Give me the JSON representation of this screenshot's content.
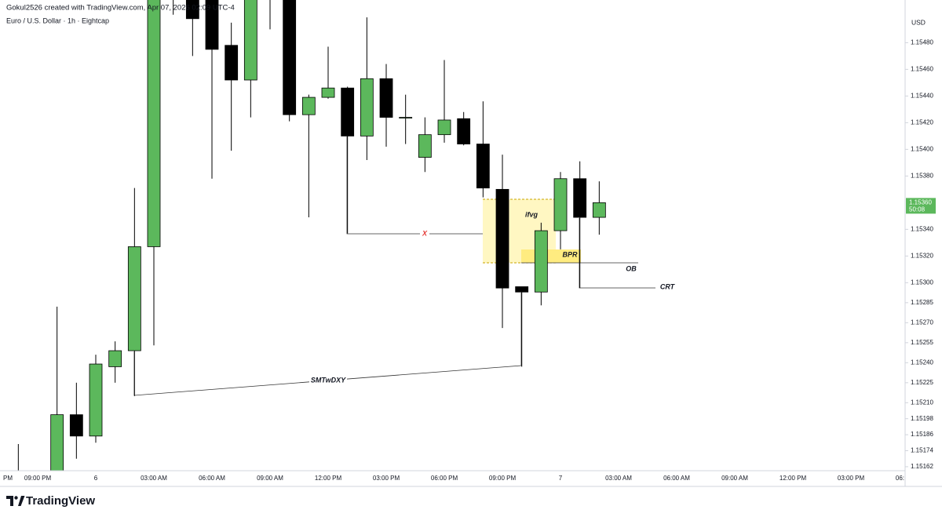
{
  "header": {
    "credit": "Gokul2526 created with TradingView.com, Apr 07, 2026 02:09 UTC-4"
  },
  "footer": {
    "logo": "TradingView"
  },
  "chart_data": {
    "type": "candlestick",
    "title": "Euro / U.S. Dollar · 1h · Eightcap",
    "y_axis_label": "USD",
    "up_color": "#5cb85c",
    "down_color": "#000000",
    "grid": false,
    "categories": [
      "PM",
      null,
      "09:00 PM",
      null,
      null,
      "6",
      null,
      null,
      "03:00 AM",
      null,
      null,
      "06:00 AM",
      null,
      null,
      "09:00 AM",
      null,
      null,
      "12:00 PM",
      null,
      null,
      "03:00 PM",
      null,
      null,
      "06:00 PM",
      null,
      null,
      "09:00 PM",
      null,
      null,
      "7",
      null,
      null,
      "03:00 AM",
      null,
      null,
      "06:00 AM",
      null,
      null,
      "09:00 AM",
      null,
      null,
      "12:00 PM",
      null,
      null,
      "03:00 PM",
      null,
      null,
      "06:"
    ],
    "open": [
      null,
      1.1515,
      null,
      1.15158,
      1.15201,
      1.15185,
      1.15237,
      1.15249,
      1.15327,
      1.1556,
      1.1553,
      1.1552,
      1.15478,
      1.15452,
      1.1554,
      1.1553,
      1.15426,
      1.15439,
      1.15446,
      1.1541,
      1.15453,
      1.15424,
      1.15394,
      1.15411,
      1.15423,
      1.15404,
      1.1537,
      1.15297,
      1.15293,
      1.15339,
      1.15378,
      1.15349,
      null,
      null,
      null,
      null,
      null,
      null,
      null,
      null,
      null,
      null,
      null,
      null,
      null,
      null,
      null,
      null
    ],
    "high": [
      null,
      1.15179,
      null,
      1.15282,
      1.15225,
      1.15246,
      1.15256,
      1.15371,
      1.15545,
      1.1558,
      1.1554,
      1.1553,
      1.15495,
      1.1553,
      1.1555,
      1.1554,
      1.15441,
      1.15477,
      1.15447,
      1.15499,
      1.15464,
      1.15441,
      1.15424,
      1.15467,
      1.15428,
      1.15436,
      1.15396,
      1.15297,
      1.15345,
      1.15383,
      1.15391,
      1.15376,
      null,
      null,
      null,
      null,
      null,
      null,
      null,
      null,
      null,
      null,
      null,
      null,
      null,
      null,
      null,
      null
    ],
    "low": [
      null,
      1.1514,
      null,
      1.1515,
      1.15168,
      1.1518,
      1.15225,
      1.15215,
      1.15253,
      1.15501,
      1.1547,
      1.15378,
      1.15399,
      1.15424,
      1.1549,
      1.15421,
      1.15349,
      1.15438,
      1.15337,
      1.15392,
      1.15402,
      1.15404,
      1.15383,
      1.15405,
      1.15403,
      1.15364,
      1.15266,
      1.15237,
      1.15283,
      1.15325,
      1.15296,
      1.15336,
      null,
      null,
      null,
      null,
      null,
      null,
      null,
      null,
      null,
      null,
      null,
      null,
      null,
      null,
      null,
      null
    ],
    "close": [
      null,
      1.15155,
      null,
      1.15201,
      1.15185,
      1.15239,
      1.15249,
      1.15327,
      1.1553,
      1.1554,
      1.15498,
      1.15475,
      1.15452,
      1.1552,
      1.1552,
      1.15426,
      1.15439,
      1.15446,
      1.1541,
      1.15453,
      1.15424,
      1.15424,
      1.15411,
      1.15422,
      1.15404,
      1.15371,
      1.15296,
      1.15293,
      1.15339,
      1.15378,
      1.15349,
      1.1536,
      null,
      null,
      null,
      null,
      null,
      null,
      null,
      null,
      null,
      null,
      null,
      null,
      null,
      null,
      null,
      null
    ],
    "ylim": [
      1.15159,
      1.15512
    ],
    "yticks": [
      {
        "value": 1.1548,
        "label": "1.15480"
      },
      {
        "value": 1.1546,
        "label": "1.15460"
      },
      {
        "value": 1.1544,
        "label": "1.15440"
      },
      {
        "value": 1.1542,
        "label": "1.15420"
      },
      {
        "value": 1.154,
        "label": "1.15400"
      },
      {
        "value": 1.1538,
        "label": "1.15380"
      },
      {
        "value": 1.1534,
        "label": "1.15340"
      },
      {
        "value": 1.1532,
        "label": "1.15320"
      },
      {
        "value": 1.153,
        "label": "1.15300"
      },
      {
        "value": 1.15285,
        "label": "1.15285"
      },
      {
        "value": 1.1527,
        "label": "1.15270"
      },
      {
        "value": 1.15255,
        "label": "1.15255"
      },
      {
        "value": 1.1524,
        "label": "1.15240"
      },
      {
        "value": 1.15225,
        "label": "1.15225"
      },
      {
        "value": 1.1521,
        "label": "1.15210"
      },
      {
        "value": 1.15198,
        "label": "1.15198"
      },
      {
        "value": 1.15186,
        "label": "1.15186"
      },
      {
        "value": 1.15174,
        "label": "1.15174"
      },
      {
        "value": 1.15162,
        "label": "1.15162"
      }
    ],
    "last_price": {
      "value": 1.1536,
      "label": "1.15360"
    },
    "countdown": "50:08",
    "annotations": [
      "ifvg",
      "BPR",
      "X",
      "OB",
      "CRT",
      "SMTwDXY"
    ]
  }
}
